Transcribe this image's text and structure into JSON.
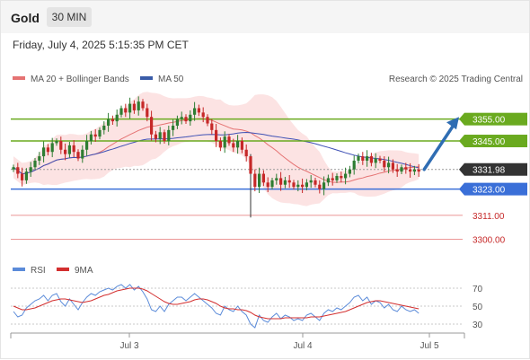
{
  "header": {
    "title": "Gold",
    "timeframe": "30 MIN"
  },
  "datetime": "Friday, July 4, 2025 5:15:35 PM CET",
  "legend": {
    "ma20": "MA 20 + Bollinger Bands",
    "ma50": "MA 50",
    "credit": "Research © 2025 Trading Central"
  },
  "rsi_legend": {
    "rsi": "RSI",
    "ma9": "9MA"
  },
  "colors": {
    "up": "#2e7d32",
    "down": "#c62828",
    "ma20": "#e57373",
    "ma50": "#3f51b5",
    "band": "#fcdede",
    "resistance": "#6aaa1f",
    "support": "#3a6fd8",
    "target": "#e57373",
    "arrow": "#2f6db3",
    "rsi": "#5b8bd9",
    "rsi_ma": "#d32f2f"
  },
  "chart_data": [
    {
      "type": "candlestick",
      "x_labels": [
        "Jul 3",
        "Jul 4",
        "Jul 5"
      ],
      "ylim": [
        3290,
        3368
      ],
      "last_price": 3331.98,
      "levels": [
        {
          "label": "3355.00",
          "value": 3355,
          "kind": "resistance"
        },
        {
          "label": "3345.00",
          "value": 3345,
          "kind": "resistance"
        },
        {
          "label": "3323.00",
          "value": 3323,
          "kind": "support"
        },
        {
          "label": "3311.00",
          "value": 3311,
          "kind": "target"
        },
        {
          "label": "3300.00",
          "value": 3300,
          "kind": "target"
        }
      ],
      "close": [
        3333,
        3330,
        3327,
        3331,
        3333,
        3336,
        3338,
        3342,
        3340,
        3344,
        3345,
        3341,
        3339,
        3343,
        3340,
        3337,
        3341,
        3345,
        3348,
        3347,
        3350,
        3352,
        3355,
        3354,
        3357,
        3360,
        3358,
        3362,
        3359,
        3363,
        3360,
        3356,
        3348,
        3346,
        3349,
        3345,
        3350,
        3352,
        3355,
        3356,
        3354,
        3357,
        3360,
        3358,
        3356,
        3353,
        3350,
        3345,
        3342,
        3347,
        3344,
        3342,
        3345,
        3341,
        3338,
        3330,
        3324,
        3330,
        3326,
        3324,
        3327,
        3328,
        3325,
        3327,
        3326,
        3324,
        3325,
        3324,
        3326,
        3327,
        3325,
        3323,
        3326,
        3328,
        3327,
        3329,
        3328,
        3330,
        3332,
        3336,
        3338,
        3336,
        3338,
        3335,
        3337,
        3336,
        3333,
        3335,
        3332,
        3331,
        3333,
        3332,
        3331,
        3332,
        3331
      ],
      "series": [
        {
          "name": "RSI",
          "range": [
            20,
            80
          ],
          "ticks": [
            30,
            50,
            70
          ],
          "values": [
            44,
            38,
            40,
            48,
            52,
            56,
            58,
            62,
            56,
            62,
            64,
            55,
            50,
            58,
            52,
            46,
            54,
            60,
            64,
            62,
            66,
            68,
            70,
            68,
            72,
            74,
            70,
            74,
            68,
            72,
            66,
            58,
            46,
            44,
            50,
            44,
            52,
            56,
            60,
            60,
            56,
            60,
            64,
            60,
            56,
            52,
            48,
            42,
            40,
            50,
            46,
            44,
            50,
            44,
            40,
            30,
            26,
            40,
            34,
            32,
            38,
            42,
            36,
            40,
            38,
            34,
            36,
            34,
            40,
            42,
            38,
            34,
            42,
            46,
            44,
            48,
            46,
            50,
            54,
            60,
            62,
            56,
            60,
            52,
            56,
            54,
            48,
            52,
            46,
            44,
            50,
            46,
            44,
            46,
            42
          ]
        },
        {
          "name": "9MA",
          "values": [
            50,
            48,
            46,
            46,
            47,
            48,
            50,
            52,
            54,
            56,
            57,
            58,
            58,
            57,
            56,
            55,
            54,
            55,
            56,
            58,
            60,
            62,
            63,
            65,
            67,
            68,
            69,
            70,
            70,
            70,
            69,
            67,
            64,
            61,
            58,
            55,
            53,
            52,
            52,
            53,
            54,
            55,
            57,
            58,
            58,
            57,
            55,
            53,
            50,
            48,
            47,
            47,
            46,
            46,
            45,
            43,
            40,
            38,
            37,
            36,
            36,
            36,
            36,
            37,
            37,
            37,
            37,
            37,
            37,
            38,
            38,
            38,
            39,
            40,
            41,
            42,
            43,
            44,
            46,
            48,
            50,
            52,
            54,
            55,
            56,
            56,
            55,
            54,
            53,
            52,
            51,
            50,
            49,
            48,
            47
          ]
        }
      ]
    }
  ]
}
